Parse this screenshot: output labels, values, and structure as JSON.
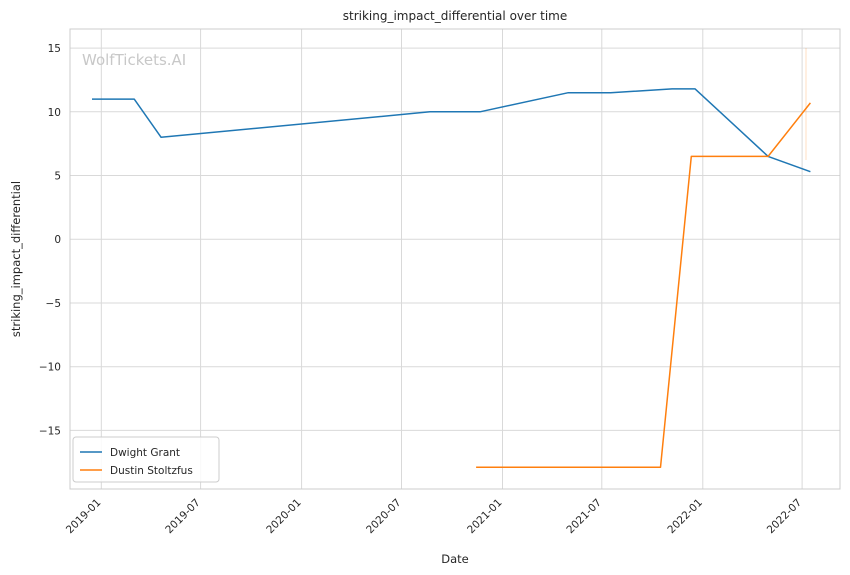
{
  "chart_data": {
    "type": "line",
    "title": "striking_impact_differential over time",
    "xlabel": "Date",
    "ylabel": "striking_impact_differential",
    "watermark": "WolfTickets.AI",
    "x_ticks": [
      "2019-01",
      "2019-07",
      "2020-01",
      "2020-07",
      "2021-01",
      "2021-07",
      "2022-01",
      "2022-07"
    ],
    "y_ticks": [
      15,
      10,
      5,
      0,
      -5,
      -10,
      -15
    ],
    "y_tick_labels": [
      "15",
      "10",
      "5",
      "0",
      "−5",
      "−10",
      "−15"
    ],
    "xlim": [
      "2018-11-05",
      "2022-09-08"
    ],
    "ylim": [
      -19.6,
      16.5
    ],
    "grid": true,
    "legend_position": "lower-left",
    "series": [
      {
        "name": "Dwight Grant",
        "color": "#1f77b4",
        "points": [
          {
            "x": "2018-12-15",
            "y": 11.0
          },
          {
            "x": "2019-03-02",
            "y": 11.0
          },
          {
            "x": "2019-04-20",
            "y": 8.0
          },
          {
            "x": "2020-08-22",
            "y": 10.0
          },
          {
            "x": "2020-11-21",
            "y": 10.0
          },
          {
            "x": "2021-05-01",
            "y": 11.5
          },
          {
            "x": "2021-07-17",
            "y": 11.5
          },
          {
            "x": "2021-11-06",
            "y": 11.8
          },
          {
            "x": "2021-12-18",
            "y": 11.8
          },
          {
            "x": "2022-04-30",
            "y": 6.5
          },
          {
            "x": "2022-07-16",
            "y": 5.3
          }
        ]
      },
      {
        "name": "Dustin Stoltzfus",
        "color": "#ff7f0e",
        "points": [
          {
            "x": "2020-11-14",
            "y": -17.9
          },
          {
            "x": "2021-10-16",
            "y": -17.9
          },
          {
            "x": "2021-12-11",
            "y": 6.5
          },
          {
            "x": "2022-04-30",
            "y": 6.5
          },
          {
            "x": "2022-07-16",
            "y": 10.7
          }
        ]
      }
    ]
  }
}
